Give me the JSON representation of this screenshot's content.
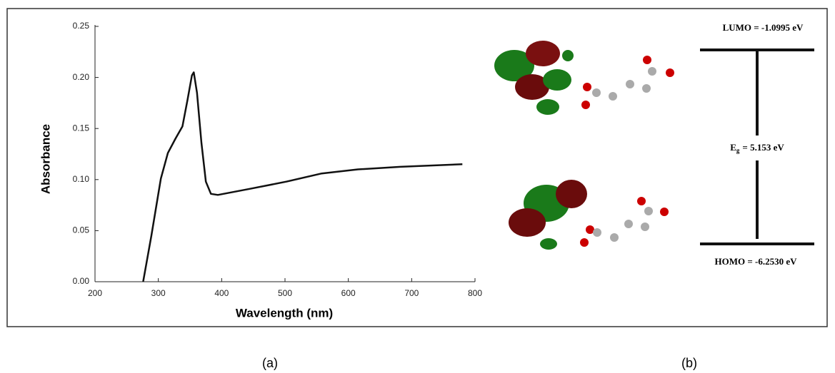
{
  "chart_data": {
    "type": "line",
    "x_label": "Wavelength (nm)",
    "y_label": "Absorbance",
    "x": [
      276,
      289,
      304,
      315,
      327,
      338,
      346,
      353,
      356,
      361,
      368,
      375,
      383,
      394,
      445,
      502,
      558,
      615,
      682,
      780
    ],
    "values": [
      0,
      0.045,
      0.101,
      0.126,
      0.14,
      0.152,
      0.178,
      0.202,
      0.205,
      0.185,
      0.136,
      0.098,
      0.086,
      0.085,
      0.091,
      0.098,
      0.106,
      0.11,
      0.1125,
      0.115
    ],
    "color": "#111111",
    "xlim": [
      200,
      800
    ],
    "xticks": [
      200,
      300,
      400,
      500,
      600,
      700,
      800
    ],
    "ylim": [
      0,
      0.25
    ],
    "yticks": [
      {
        "value": 0,
        "label": "0.00"
      },
      {
        "value": 0.05,
        "label": "0.05"
      },
      {
        "value": 0.1,
        "label": "0.10"
      },
      {
        "value": 0.15,
        "label": "0.15"
      },
      {
        "value": 0.2,
        "label": "0.20"
      },
      {
        "value": 0.25,
        "label": "0.25"
      }
    ]
  },
  "diagram": {
    "lumo": "LUMO = -1.0995 eV",
    "gap_symbol": "E",
    "gap_subscript": "g",
    "gap_value": "= 5.153 eV",
    "homo": "HOMO = -6.2530 eV"
  },
  "captions": [
    "(a)",
    "(b)"
  ]
}
